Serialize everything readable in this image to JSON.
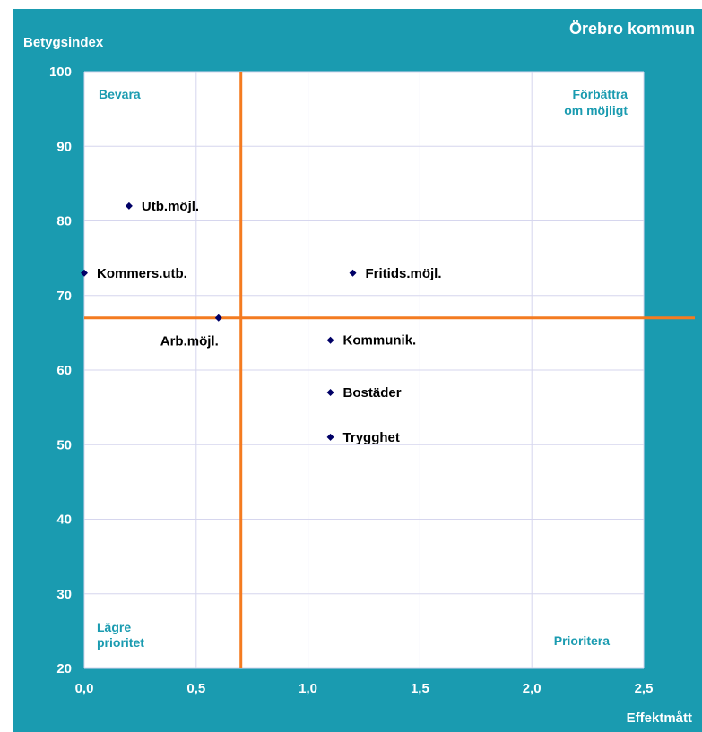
{
  "chart_data": {
    "type": "scatter",
    "title": "Örebro kommun",
    "ylabel": "Betygsindex",
    "xlabel": "Effektmått",
    "xlim": [
      0,
      2.5
    ],
    "ylim": [
      20,
      100
    ],
    "x_ticks": [
      "0,0",
      "0,5",
      "1,0",
      "1,5",
      "2,0",
      "2,5"
    ],
    "y_ticks": [
      "20",
      "30",
      "40",
      "50",
      "60",
      "70",
      "80",
      "90",
      "100"
    ],
    "grid": true,
    "reference_lines": {
      "x": 0.7,
      "y": 67
    },
    "quadrant_labels": {
      "top_left": "Bevara",
      "top_right_1": "Förbättra",
      "top_right_2": "om möjligt",
      "bottom_left_1": "Lägre",
      "bottom_left_2": "prioritet",
      "bottom_right": "Prioritera"
    },
    "points": [
      {
        "label": "Utb.möjl.",
        "x": 0.2,
        "y": 82
      },
      {
        "label": "Kommers.utb.",
        "x": 0.0,
        "y": 73
      },
      {
        "label": "Fritids.möjl.",
        "x": 1.2,
        "y": 73
      },
      {
        "label": "Arb.möjl.",
        "x": 0.6,
        "y": 67
      },
      {
        "label": "Kommunik.",
        "x": 1.1,
        "y": 64
      },
      {
        "label": "Bostäder",
        "x": 1.1,
        "y": 57
      },
      {
        "label": "Trygghet",
        "x": 1.1,
        "y": 51
      }
    ],
    "colors": {
      "background": "#1A9BB0",
      "plot_area": "#FFFFFF",
      "grid": "#D6D6EE",
      "reference_line": "#F47B20",
      "marker": "#000066",
      "quadrant_text": "#1A9BB0"
    }
  }
}
